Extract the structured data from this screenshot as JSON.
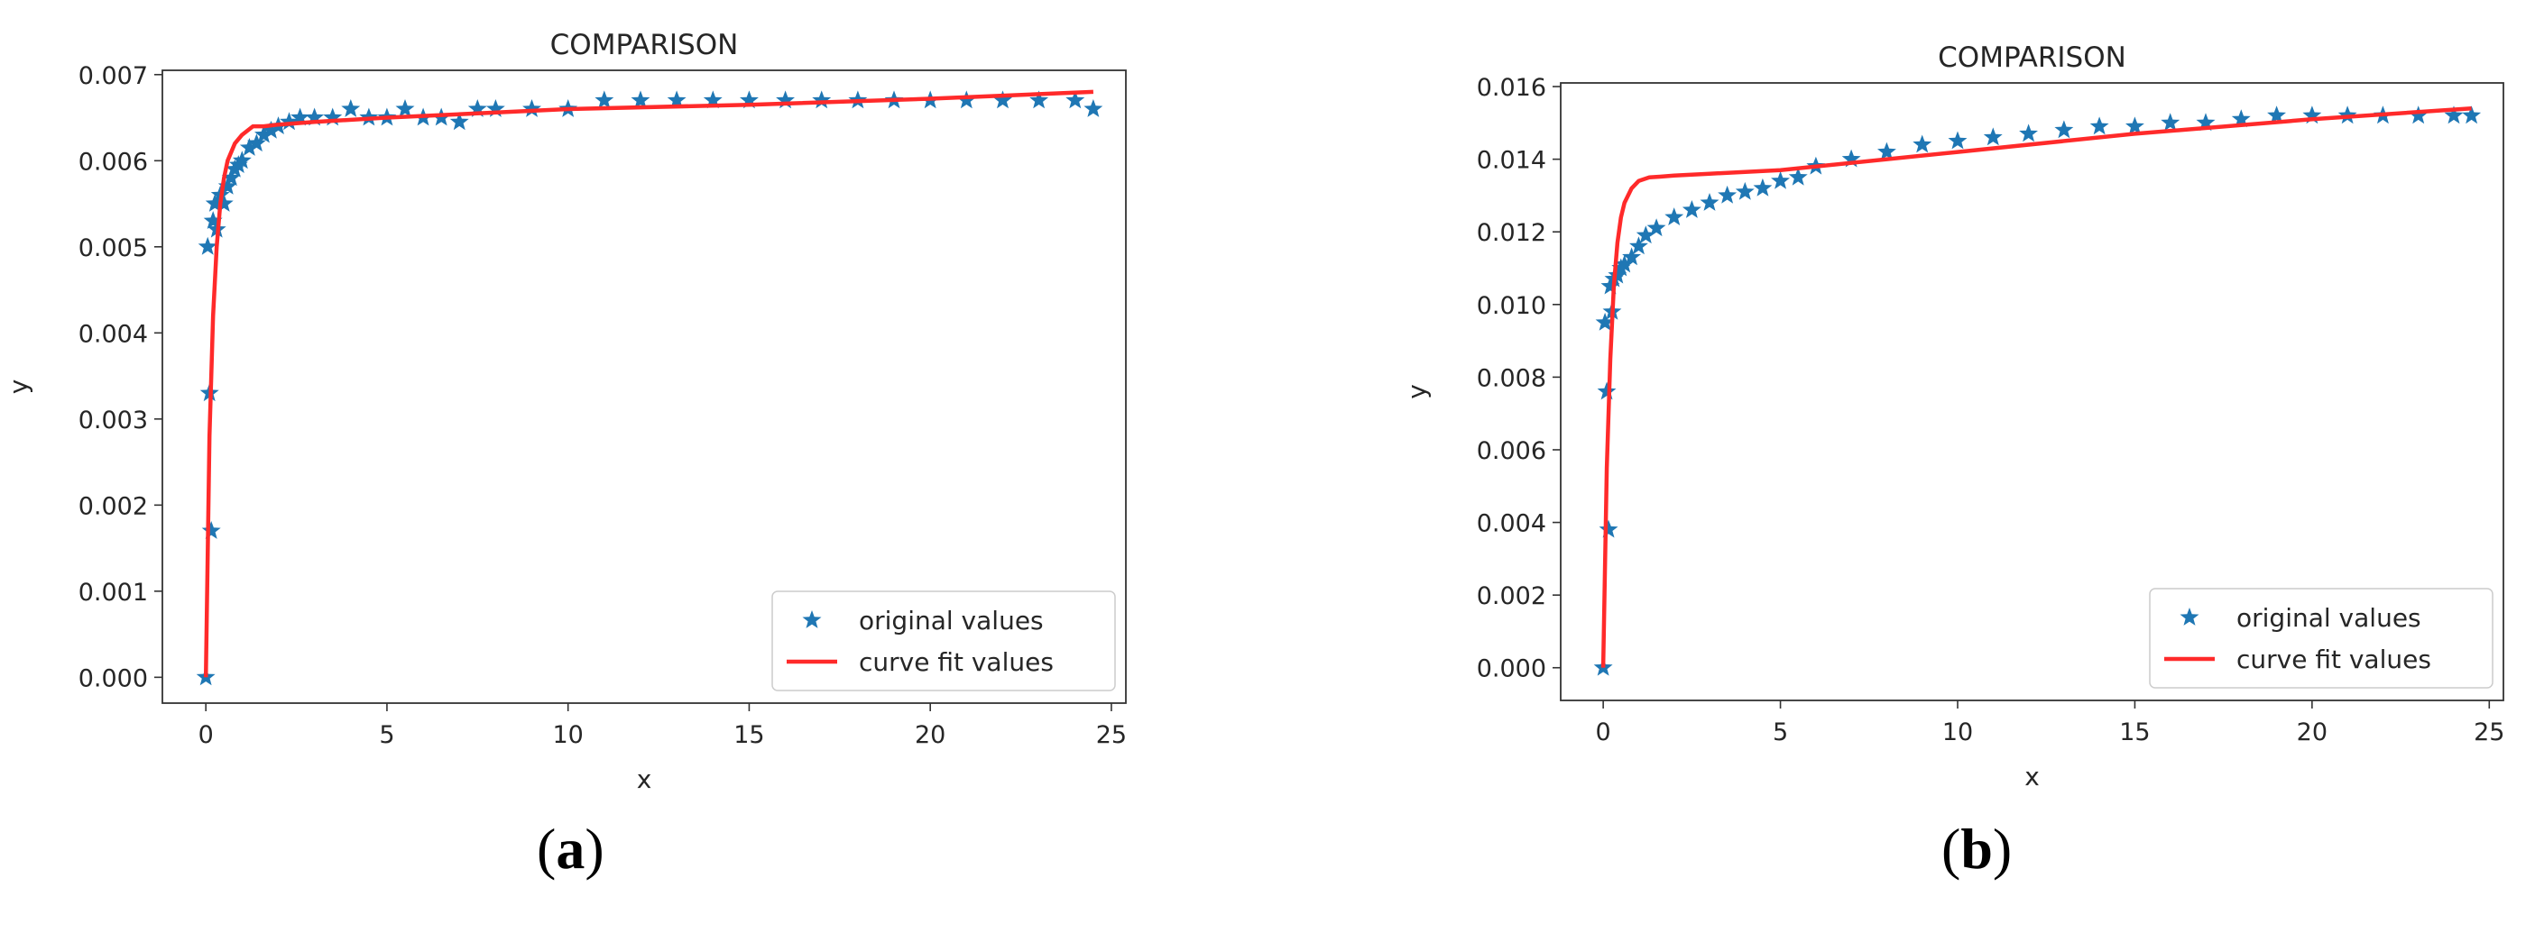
{
  "panel_labels": [
    {
      "open": "(",
      "letter": "a",
      "close": ")"
    },
    {
      "open": "(",
      "letter": "b",
      "close": ")"
    }
  ],
  "chart_data": [
    {
      "type": "scatter",
      "title": "COMPARISON",
      "xlabel": "x",
      "ylabel": "y",
      "xlim": [
        -1.2,
        25.4
      ],
      "ylim": [
        -0.0003,
        0.00705
      ],
      "xticks": [
        0,
        5,
        10,
        15,
        20,
        25
      ],
      "yticks": [
        0.0,
        0.001,
        0.002,
        0.003,
        0.004,
        0.005,
        0.006,
        0.007
      ],
      "ytick_labels": [
        "0.000",
        "0.001",
        "0.002",
        "0.003",
        "0.004",
        "0.005",
        "0.006",
        "0.007"
      ],
      "grid": false,
      "legend_position": "lower-right",
      "series": [
        {
          "name": "original values",
          "kind": "marker",
          "marker": "star",
          "color": "#1f77b4",
          "x": [
            0,
            0.05,
            0.1,
            0.15,
            0.2,
            0.25,
            0.3,
            0.4,
            0.5,
            0.6,
            0.7,
            0.8,
            0.9,
            1.0,
            1.2,
            1.4,
            1.6,
            1.8,
            2.0,
            2.3,
            2.6,
            3.0,
            3.5,
            4.0,
            4.5,
            5.0,
            5.5,
            6.0,
            6.5,
            7.0,
            7.5,
            8.0,
            9.0,
            10.0,
            11.0,
            12.0,
            13.0,
            14.0,
            15.0,
            16.0,
            17.0,
            18.0,
            19.0,
            20.0,
            21.0,
            22.0,
            23.0,
            24.0,
            24.5
          ],
          "y": [
            0.0,
            0.005,
            0.0033,
            0.0017,
            0.0053,
            0.0055,
            0.0052,
            0.0056,
            0.0055,
            0.0057,
            0.0058,
            0.0059,
            0.00595,
            0.006,
            0.00615,
            0.0062,
            0.0063,
            0.00635,
            0.0064,
            0.00645,
            0.0065,
            0.0065,
            0.0065,
            0.0066,
            0.0065,
            0.0065,
            0.0066,
            0.0065,
            0.0065,
            0.00645,
            0.0066,
            0.0066,
            0.0066,
            0.0066,
            0.0067,
            0.0067,
            0.0067,
            0.0067,
            0.0067,
            0.0067,
            0.0067,
            0.0067,
            0.0067,
            0.0067,
            0.0067,
            0.0067,
            0.0067,
            0.0067,
            0.0066
          ]
        },
        {
          "name": "curve fit values",
          "kind": "line",
          "color": "#ff2a2a",
          "x": [
            0,
            0.1,
            0.2,
            0.3,
            0.4,
            0.5,
            0.6,
            0.8,
            1.0,
            1.3,
            1.6,
            2.0,
            3.0,
            5.0,
            10.0,
            15.0,
            20.0,
            24.5
          ],
          "y": [
            0.0,
            0.0028,
            0.0042,
            0.005,
            0.0055,
            0.0058,
            0.006,
            0.0062,
            0.0063,
            0.0064,
            0.0064,
            0.00642,
            0.00645,
            0.0065,
            0.0066,
            0.00665,
            0.00672,
            0.0068
          ]
        }
      ]
    },
    {
      "type": "scatter",
      "title": "COMPARISON",
      "xlabel": "x",
      "ylabel": "y",
      "xlim": [
        -1.2,
        25.4
      ],
      "ylim": [
        -0.0009,
        0.0161
      ],
      "xticks": [
        0,
        5,
        10,
        15,
        20,
        25
      ],
      "yticks": [
        0.0,
        0.002,
        0.004,
        0.006,
        0.008,
        0.01,
        0.012,
        0.014,
        0.016
      ],
      "ytick_labels": [
        "0.000",
        "0.002",
        "0.004",
        "0.006",
        "0.008",
        "0.010",
        "0.012",
        "0.014",
        "0.016"
      ],
      "grid": false,
      "legend_position": "lower-right",
      "series": [
        {
          "name": "original values",
          "kind": "marker",
          "marker": "star",
          "color": "#1f77b4",
          "x": [
            0,
            0.05,
            0.1,
            0.15,
            0.2,
            0.25,
            0.3,
            0.4,
            0.5,
            0.6,
            0.8,
            1.0,
            1.2,
            1.5,
            2.0,
            2.5,
            3.0,
            3.5,
            4.0,
            4.5,
            5.0,
            5.5,
            6.0,
            7.0,
            8.0,
            9.0,
            10.0,
            11.0,
            12.0,
            13.0,
            14.0,
            15.0,
            16.0,
            17.0,
            18.0,
            19.0,
            20.0,
            21.0,
            22.0,
            23.0,
            24.0,
            24.5
          ],
          "y": [
            0.0,
            0.0095,
            0.0076,
            0.0038,
            0.0105,
            0.0098,
            0.0107,
            0.0108,
            0.011,
            0.0111,
            0.0113,
            0.0116,
            0.0119,
            0.0121,
            0.0124,
            0.0126,
            0.0128,
            0.013,
            0.0131,
            0.0132,
            0.0134,
            0.0135,
            0.0138,
            0.014,
            0.0142,
            0.0144,
            0.0145,
            0.0146,
            0.0147,
            0.0148,
            0.0149,
            0.0149,
            0.015,
            0.015,
            0.0151,
            0.0152,
            0.0152,
            0.0152,
            0.0152,
            0.0152,
            0.0152,
            0.0152
          ]
        },
        {
          "name": "curve fit values",
          "kind": "line",
          "color": "#ff2a2a",
          "x": [
            0,
            0.1,
            0.2,
            0.3,
            0.4,
            0.5,
            0.6,
            0.8,
            1.0,
            1.3,
            1.6,
            2.0,
            3.0,
            5.0,
            10.0,
            15.0,
            20.0,
            24.5
          ],
          "y": [
            0.0,
            0.0055,
            0.0085,
            0.0105,
            0.0117,
            0.0124,
            0.0128,
            0.0132,
            0.0134,
            0.0135,
            0.01352,
            0.01355,
            0.0136,
            0.0137,
            0.0142,
            0.0147,
            0.0151,
            0.0154
          ]
        }
      ]
    }
  ]
}
